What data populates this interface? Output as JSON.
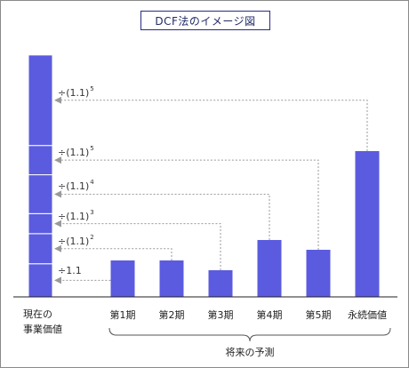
{
  "title": "DCF法のイメージ図",
  "present_value_label_line1": "現在の",
  "present_value_label_line2": "事業価値",
  "forecast_caption": "将来の予測",
  "bar_color": "#5b5bdf",
  "arrow_color": "#9a9a9a",
  "periods": [
    {
      "label": "第1期",
      "value": 41,
      "divisor": "÷1.1",
      "exponent": ""
    },
    {
      "label": "第2期",
      "value": 41,
      "divisor": "÷(1.1)",
      "exponent": "2"
    },
    {
      "label": "第3期",
      "value": 30,
      "divisor": "÷(1.1)",
      "exponent": "3"
    },
    {
      "label": "第4期",
      "value": 64,
      "divisor": "÷(1.1)",
      "exponent": "4"
    },
    {
      "label": "第5期",
      "value": 53,
      "divisor": "÷(1.1)",
      "exponent": "5"
    },
    {
      "label": "永続価値",
      "value": 164,
      "divisor": "÷(1.1)",
      "exponent": "5"
    }
  ]
}
